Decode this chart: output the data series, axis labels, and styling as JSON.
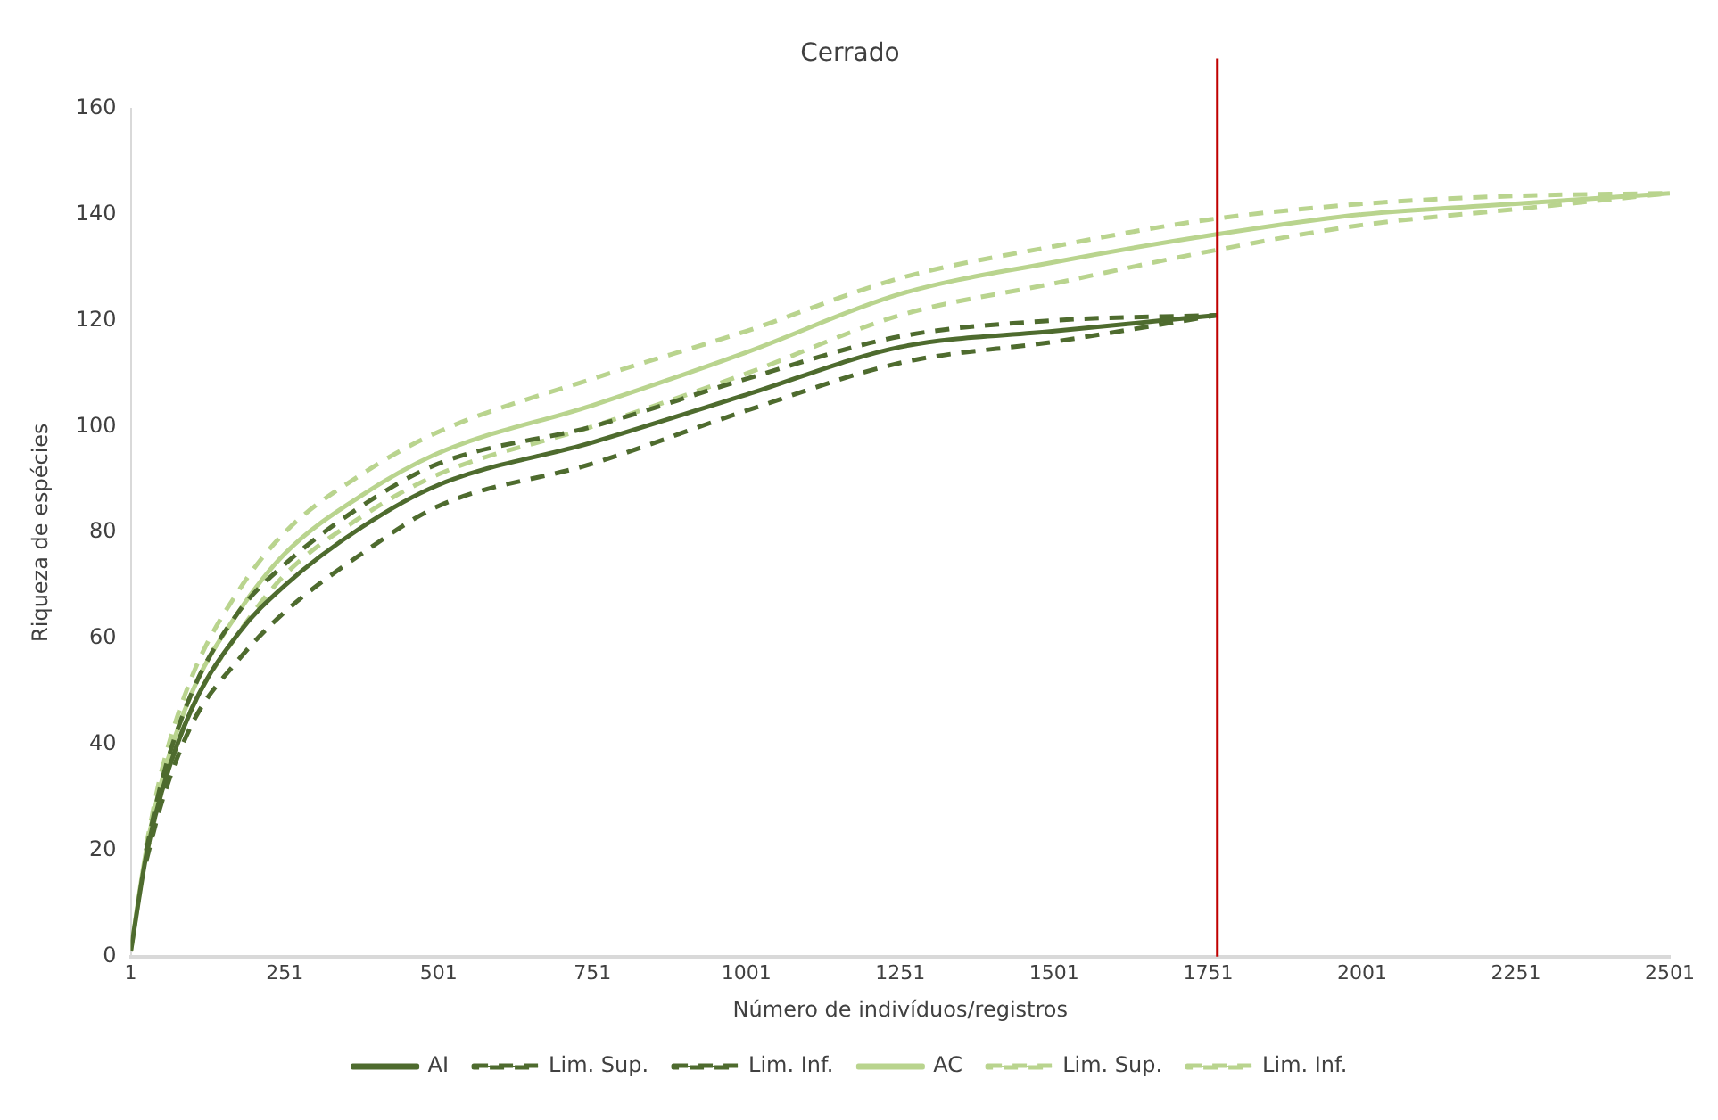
{
  "chart_data": {
    "type": "line",
    "title": "Cerrado",
    "xlabel": "Número de indivíduos/registros",
    "ylabel": "Riqueza de espécies",
    "xlim": [
      1,
      2501
    ],
    "xticks": [
      1,
      251,
      501,
      751,
      1001,
      1251,
      1501,
      1751,
      2001,
      2251,
      2501
    ],
    "ylim": [
      0,
      160
    ],
    "yticks": [
      0,
      20,
      40,
      60,
      80,
      100,
      120,
      140,
      160
    ],
    "grid": false,
    "legend": "bottom",
    "marker": "none",
    "ref_lines": [
      {
        "axis": "x",
        "value": 1766,
        "color": "#c00000",
        "line_style": "solid"
      }
    ],
    "series": [
      {
        "name": "AI",
        "color": "#4e6b2e",
        "line_style": "solid",
        "x": [
          1,
          26,
          51,
          101,
          176,
          251,
          376,
          501,
          751,
          1001,
          1251,
          1501,
          1766
        ],
        "values": [
          1,
          19,
          31,
          47,
          61,
          70,
          81,
          89,
          97,
          106,
          115,
          118,
          121
        ]
      },
      {
        "name": "Lim. Sup.",
        "color": "#4e6b2e",
        "line_style": "dashed",
        "x": [
          26,
          51,
          101,
          176,
          251,
          376,
          501,
          751,
          1001,
          1251,
          1501,
          1766
        ],
        "values": [
          20,
          33,
          50,
          65,
          74,
          85,
          93,
          100,
          109,
          117,
          120,
          121
        ]
      },
      {
        "name": "Lim. Inf.",
        "color": "#4e6b2e",
        "line_style": "dashed",
        "x": [
          26,
          51,
          101,
          176,
          251,
          376,
          501,
          751,
          1001,
          1251,
          1501,
          1766
        ],
        "values": [
          18,
          29,
          44,
          56,
          65,
          76,
          85,
          93,
          103,
          112,
          116,
          121
        ]
      },
      {
        "name": "AC",
        "color": "#b9d48e",
        "line_style": "solid",
        "x": [
          1,
          26,
          51,
          101,
          176,
          251,
          376,
          501,
          751,
          1001,
          1251,
          1501,
          1751,
          2001,
          2251,
          2501
        ],
        "values": [
          1,
          20,
          33,
          50,
          65,
          76,
          87,
          95,
          104,
          114,
          125,
          131,
          136,
          140,
          142,
          144
        ]
      },
      {
        "name": "Lim. Sup.",
        "color": "#b9d48e",
        "line_style": "dashed",
        "x": [
          26,
          51,
          101,
          176,
          251,
          376,
          501,
          751,
          1001,
          1251,
          1501,
          1751,
          2001,
          2251,
          2501
        ],
        "values": [
          21,
          35,
          53,
          69,
          80,
          91,
          99,
          109,
          118,
          128,
          134,
          139,
          142,
          143.5,
          144
        ]
      },
      {
        "name": "Lim. Inf.",
        "color": "#b9d48e",
        "line_style": "dashed",
        "x": [
          26,
          51,
          101,
          176,
          251,
          376,
          501,
          751,
          1001,
          1251,
          1501,
          1751,
          2001,
          2251,
          2501
        ],
        "values": [
          19,
          31,
          47,
          61,
          72,
          83,
          91,
          100,
          110,
          121,
          127,
          133,
          138,
          141,
          144
        ]
      }
    ]
  }
}
